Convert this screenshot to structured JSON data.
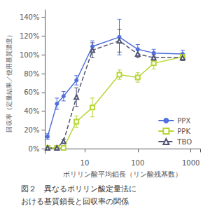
{
  "chart_data": {
    "type": "line",
    "xlabel": "ポリリン酸平均鎖長（リン酸残基数）",
    "ylabel": "回収率（定量結果／使用基質濃度）",
    "annotations": [
      "図２　異なるポリリン酸定量法に",
      "おける基質鎖長と回収率の関係"
    ],
    "log": "x",
    "xlim": [
      1.8,
      1500
    ],
    "xticks": [
      10,
      100,
      1000
    ],
    "ylim": [
      -0.05,
      1.48
    ],
    "yticks": [
      {
        "value": 0.0,
        "label": "0%"
      },
      {
        "value": 0.2,
        "label": "20%"
      },
      {
        "value": 0.4,
        "label": "40%"
      },
      {
        "value": 0.6,
        "label": "60%"
      },
      {
        "value": 0.8,
        "label": "80%"
      },
      {
        "value": 1.0,
        "label": "100%"
      },
      {
        "value": 1.2,
        "label": "120%"
      },
      {
        "value": 1.4,
        "label": "140%"
      }
    ],
    "grid": false,
    "legend": "lower right",
    "series": [
      {
        "name": "PPX",
        "marker": "circle",
        "line_style": "solid",
        "x": [
          2,
          3,
          4,
          7,
          14,
          45,
          100,
          200,
          700
        ],
        "values": [
          0.13,
          0.48,
          0.56,
          0.73,
          1.09,
          1.19,
          1.06,
          1.02,
          1.01
        ],
        "yerr": [
          0.03,
          0.06,
          0.05,
          0.05,
          0.06,
          0.19,
          0.05,
          0.04,
          0.04
        ]
      },
      {
        "name": "PPK",
        "marker": "open_square",
        "line_style": "solid",
        "x": [
          2,
          3,
          4,
          7,
          14,
          45,
          100,
          200,
          700
        ],
        "values": [
          0.01,
          0.01,
          0.01,
          0.29,
          0.44,
          0.79,
          0.76,
          0.91,
          0.98
        ],
        "yerr": [
          0.01,
          0.01,
          0.01,
          0.06,
          0.1,
          0.05,
          0.05,
          0.06,
          0.04
        ]
      },
      {
        "name": "TBO",
        "marker": "open_triangle",
        "line_style": "dashed",
        "x": [
          2,
          3,
          4,
          7,
          14,
          45,
          100,
          200,
          700
        ],
        "values": [
          0.01,
          0.01,
          0.08,
          0.55,
          1.05,
          1.15,
          1.01,
          0.97,
          0.97
        ],
        "yerr": [
          0.01,
          0.01,
          0.02,
          0.1,
          0.08,
          0.12,
          0.04,
          0.03,
          0.03
        ]
      }
    ]
  }
}
